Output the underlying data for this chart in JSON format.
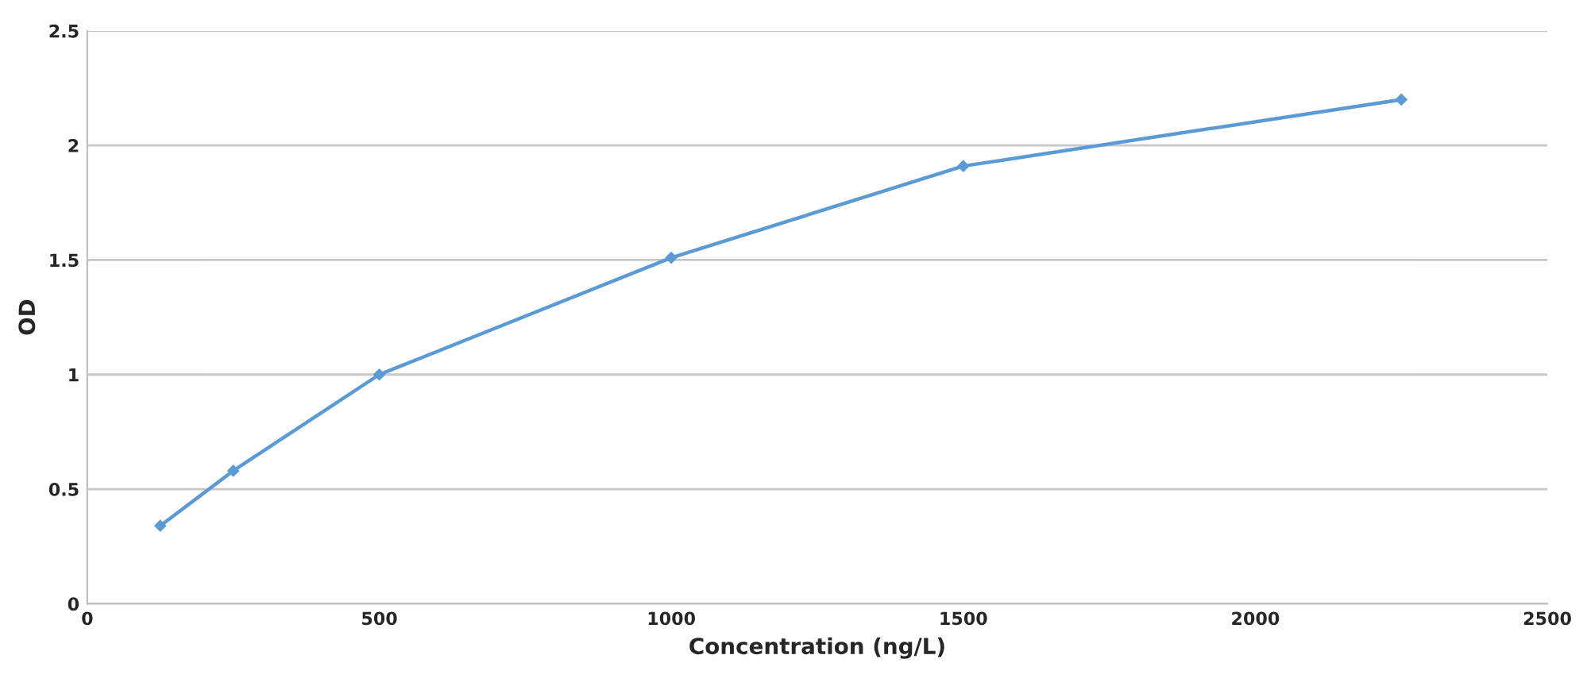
{
  "chart_data": {
    "type": "line",
    "xlabel": "Concentration (ng/L)",
    "ylabel": "OD",
    "x": [
      125,
      250,
      500,
      1000,
      1500,
      2250
    ],
    "series": [
      {
        "color": "#5b9bd5",
        "values": [
          0.34,
          0.58,
          1.0,
          1.51,
          1.91,
          2.2
        ]
      }
    ],
    "xlim": [
      0,
      2500
    ],
    "xticks": [
      0,
      500,
      1000,
      1500,
      2000,
      2500
    ],
    "ylim": [
      0,
      2.5
    ],
    "yticks": [
      0,
      0.5,
      1,
      1.5,
      2,
      2.5
    ],
    "grid": "y",
    "marker": "diamond",
    "line_style": "solid"
  }
}
